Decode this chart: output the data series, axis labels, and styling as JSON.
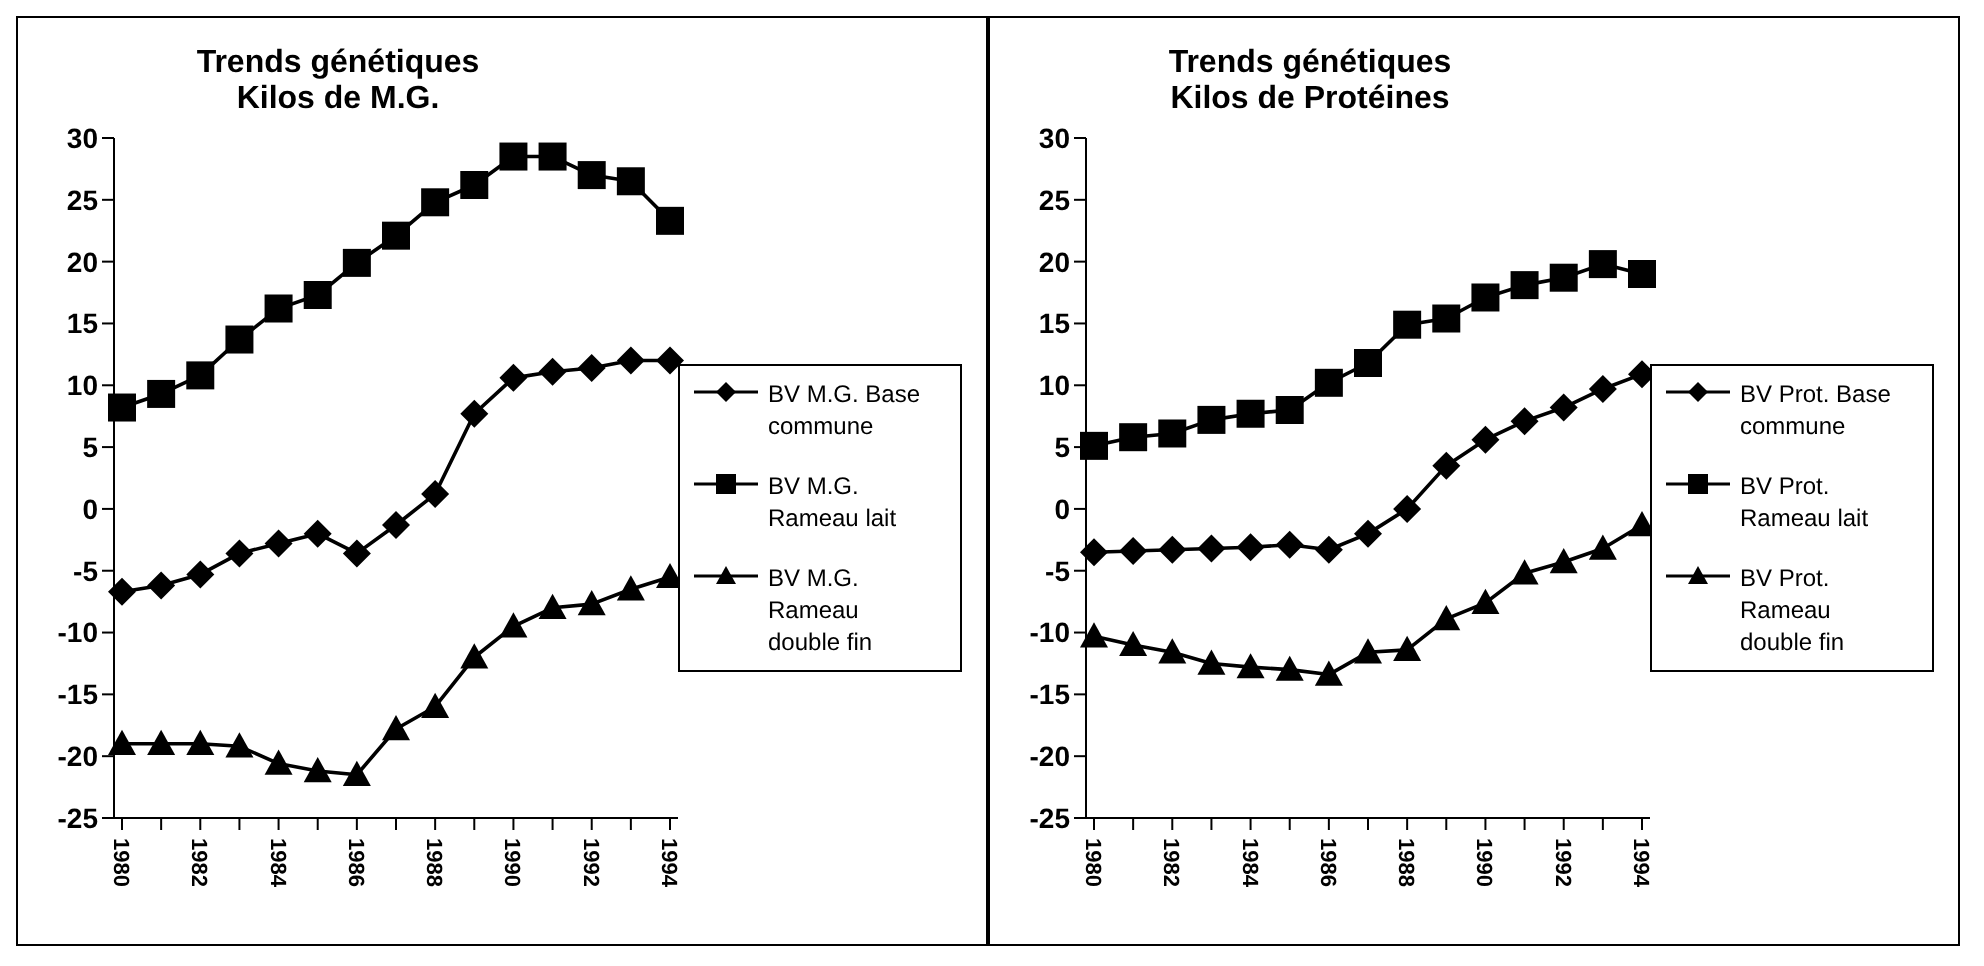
{
  "chart_data": [
    {
      "type": "line",
      "title": "Trends génétiques\nKilos de M.G.",
      "categories": [
        "1980",
        null,
        "1982",
        null,
        "1984",
        null,
        "1986",
        null,
        "1988",
        null,
        "1990",
        null,
        "1992",
        null,
        "1994"
      ],
      "ylim": [
        -25,
        30
      ],
      "yticks": [
        -25,
        -20,
        -15,
        -10,
        -5,
        0,
        5,
        10,
        15,
        20,
        25,
        30
      ],
      "grid": false,
      "legend": "right",
      "line_style": "solid",
      "series": [
        {
          "name": "BV M.G. Base commune",
          "color": "#000000",
          "marker": "diamond",
          "values": [
            -6.7,
            -6.2,
            -5.3,
            -3.6,
            -2.8,
            -2,
            -3.6,
            -1.3,
            1.2,
            7.7,
            10.6,
            11.1,
            11.4,
            12,
            12
          ]
        },
        {
          "name": "BV M.G. Rameau lait",
          "color": "#000000",
          "marker": "square",
          "values": [
            8.2,
            9.3,
            10.8,
            13.7,
            16.2,
            17.3,
            19.9,
            22.1,
            24.8,
            26.2,
            28.5,
            28.5,
            27,
            26.5,
            23.3
          ]
        },
        {
          "name": "BV M.G. Rameau double fin",
          "color": "#000000",
          "marker": "triangle",
          "values": [
            -19,
            -19,
            -19,
            -19.2,
            -20.6,
            -21.2,
            -21.5,
            -17.8,
            -16,
            -12,
            -9.5,
            -8,
            -7.7,
            -6.5,
            -5.5
          ]
        }
      ]
    },
    {
      "type": "line",
      "title": "Trends génétiques\nKilos de Protéines",
      "categories": [
        "1980",
        null,
        "1982",
        null,
        "1984",
        null,
        "1986",
        null,
        "1988",
        null,
        "1990",
        null,
        "1992",
        null,
        "1994"
      ],
      "ylim": [
        -25,
        30
      ],
      "yticks": [
        -25,
        -20,
        -15,
        -10,
        -5,
        0,
        5,
        10,
        15,
        20,
        25,
        30
      ],
      "grid": false,
      "legend": "right",
      "line_style": "solid",
      "series": [
        {
          "name": "BV Prot. Base commune",
          "color": "#000000",
          "marker": "diamond",
          "values": [
            -3.5,
            -3.4,
            -3.3,
            -3.2,
            -3.1,
            -2.9,
            -3.3,
            -2,
            0,
            3.5,
            5.6,
            7.1,
            8.2,
            9.7,
            10.9
          ]
        },
        {
          "name": "BV Prot. Rameau lait",
          "color": "#000000",
          "marker": "square",
          "values": [
            5.1,
            5.8,
            6.1,
            7.2,
            7.7,
            8,
            10.2,
            11.8,
            14.9,
            15.4,
            17.1,
            18.1,
            18.7,
            19.8,
            19
          ]
        },
        {
          "name": "BV Prot. Rameau double fin",
          "color": "#000000",
          "marker": "triangle",
          "values": [
            -10.3,
            -11,
            -11.6,
            -12.5,
            -12.8,
            -13,
            -13.4,
            -11.6,
            -11.4,
            -8.9,
            -7.6,
            -5.2,
            -4.3,
            -3.2,
            -1.3
          ]
        }
      ]
    }
  ]
}
